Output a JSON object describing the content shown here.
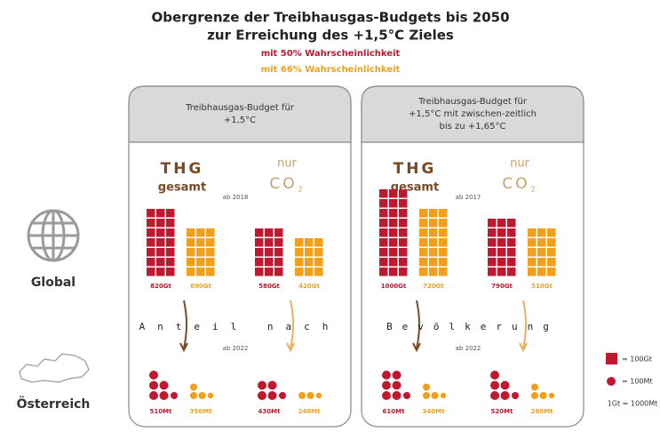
{
  "title": [
    "Obergrenze der Treibhausgas-Budgets bis 2050",
    "zur Erreichung des +1,5°C Zieles"
  ],
  "probabilities": [
    "mit 50% Wahrscheinlichkeit",
    "mit 66% Wahrscheinlichkeit"
  ],
  "rows": [
    "Global",
    "Österreich"
  ],
  "share_label": [
    "Anteil nach",
    "Bevölkerung"
  ],
  "panels": [
    {
      "header": [
        "Treibhausgas-Budget für",
        "+1,5°C"
      ],
      "thg": [
        "THG",
        "gesamt"
      ],
      "co2": [
        "nur",
        "CO",
        "2"
      ],
      "since_global": "ab 2018",
      "global": [
        "820Gt",
        "690Gt",
        "580Gt",
        "420Gt"
      ],
      "since_austria": "ab 2022",
      "austria": [
        "510Mt",
        "350Mt",
        "430Mt",
        "240Mt"
      ]
    },
    {
      "header": [
        "Treibhausgas-Budget für",
        "+1,5°C mit zwischen-zeitlich",
        "bis zu +1,65°C"
      ],
      "thg": [
        "THG",
        "gesamt"
      ],
      "co2": [
        "nur",
        "CO",
        "2"
      ],
      "since_global": "ab 2017",
      "global": [
        "1000Gt",
        "720Gt",
        "790Gt",
        "510Gt"
      ],
      "since_austria": "ab 2022",
      "austria": [
        "610Mt",
        "340Mt",
        "520Mt",
        "280Mt"
      ]
    }
  ],
  "legend": [
    "= 100Gt",
    "= 100Mt",
    "1Gt = 1000Mt"
  ]
}
